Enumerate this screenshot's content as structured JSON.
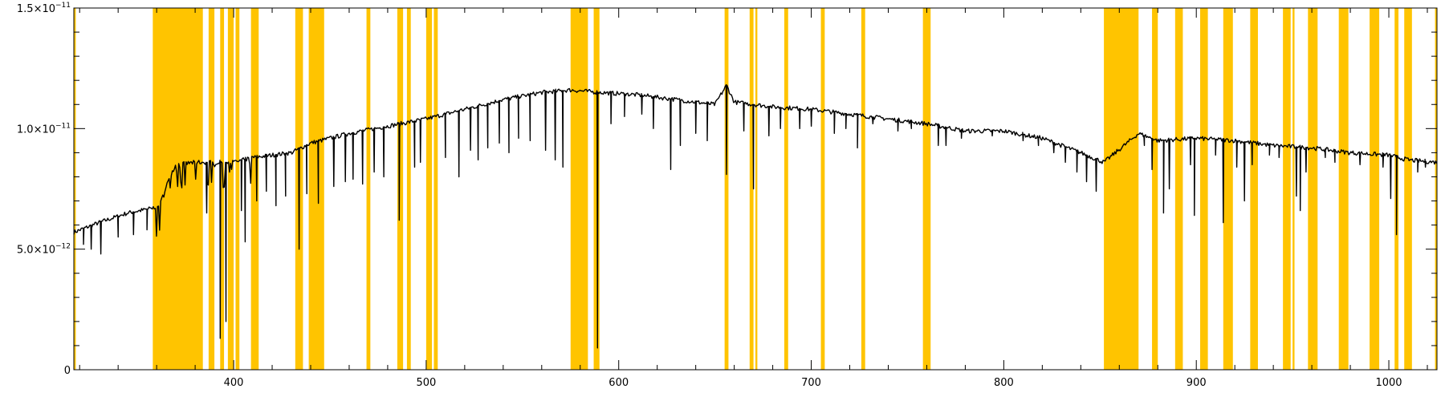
{
  "chart_data": {
    "type": "line",
    "title": "",
    "xlabel": "",
    "ylabel": "",
    "xlim": [
      317,
      1025
    ],
    "ylim": [
      0,
      1.5e-11
    ],
    "x_ticks": [
      {
        "value": 400,
        "label": "400"
      },
      {
        "value": 500,
        "label": "500"
      },
      {
        "value": 600,
        "label": "600"
      },
      {
        "value": 700,
        "label": "700"
      },
      {
        "value": 800,
        "label": "800"
      },
      {
        "value": 900,
        "label": "900"
      },
      {
        "value": 1000,
        "label": "1000"
      }
    ],
    "y_ticks": [
      {
        "value": 0,
        "mantissa": "0",
        "exponent": ""
      },
      {
        "value": 5e-12,
        "mantissa": "5.0×10",
        "exponent": "−12"
      },
      {
        "value": 1e-11,
        "mantissa": "1.0×10",
        "exponent": "−11"
      },
      {
        "value": 1.5e-11,
        "mantissa": "1.5×10",
        "exponent": "−11"
      }
    ],
    "highlight_color": "#FFC400",
    "line_color": "#000000",
    "masked_bands": [
      [
        317,
        318
      ],
      [
        358,
        384
      ],
      [
        387,
        390
      ],
      [
        393,
        395
      ],
      [
        397,
        400
      ],
      [
        401,
        403
      ],
      [
        409,
        413
      ],
      [
        432,
        436
      ],
      [
        439,
        447
      ],
      [
        469,
        471
      ],
      [
        485,
        488
      ],
      [
        490,
        492
      ],
      [
        500,
        503
      ],
      [
        504,
        506
      ],
      [
        575,
        584
      ],
      [
        587,
        590
      ],
      [
        655,
        657
      ],
      [
        668,
        670
      ],
      [
        671,
        672
      ],
      [
        686,
        688
      ],
      [
        705,
        707
      ],
      [
        726,
        728
      ],
      [
        758,
        762
      ],
      [
        852,
        870
      ],
      [
        877,
        880
      ],
      [
        889,
        893
      ],
      [
        902,
        906
      ],
      [
        914,
        919
      ],
      [
        928,
        932
      ],
      [
        945,
        949
      ],
      [
        950,
        951
      ],
      [
        958,
        963
      ],
      [
        974,
        979
      ],
      [
        990,
        995
      ],
      [
        1003,
        1005
      ],
      [
        1008,
        1012
      ],
      [
        1024,
        1025
      ]
    ],
    "continuum": {
      "x": [
        317,
        330,
        345,
        358,
        362,
        366,
        370,
        380,
        390,
        400,
        410,
        420,
        430,
        440,
        450,
        460,
        480,
        500,
        520,
        540,
        560,
        575,
        590,
        610,
        630,
        650,
        656,
        660,
        680,
        700,
        720,
        740,
        760,
        780,
        800,
        820,
        840,
        852,
        870,
        880,
        900,
        920,
        940,
        960,
        980,
        1000,
        1010,
        1025
      ],
      "y": [
        5.7e-12,
        6.1e-12,
        6.5e-12,
        6.7e-12,
        6.9e-12,
        7.9e-12,
        8.5e-12,
        8.6e-12,
        8.6e-12,
        8.6e-12,
        8.8e-12,
        8.9e-12,
        9e-12,
        9.4e-12,
        9.6e-12,
        9.8e-12,
        1.01e-11,
        1.04e-11,
        1.08e-11,
        1.12e-11,
        1.15e-11,
        1.16e-11,
        1.15e-11,
        1.14e-11,
        1.12e-11,
        1.1e-11,
        1.18e-11,
        1.11e-11,
        1.09e-11,
        1.08e-11,
        1.06e-11,
        1.04e-11,
        1.02e-11,
        9.9e-12,
        9.9e-12,
        9.6e-12,
        9e-12,
        8.6e-12,
        9.8e-12,
        9.5e-12,
        9.6e-12,
        9.5e-12,
        9.3e-12,
        9.2e-12,
        9e-12,
        8.9e-12,
        8.7e-12,
        8.6e-12
      ]
    },
    "absorption_lines": [
      [
        322,
        5.2e-12
      ],
      [
        326,
        5e-12
      ],
      [
        331,
        4.8e-12
      ],
      [
        340,
        5.5e-12
      ],
      [
        348,
        5.6e-12
      ],
      [
        355,
        5.8e-12
      ],
      [
        386,
        6.5e-12
      ],
      [
        393,
        1.3e-12
      ],
      [
        396,
        2e-12
      ],
      [
        404,
        6.6e-12
      ],
      [
        406,
        5.3e-12
      ],
      [
        412,
        7e-12
      ],
      [
        417,
        7.4e-12
      ],
      [
        422,
        6.8e-12
      ],
      [
        427,
        7.2e-12
      ],
      [
        434,
        5e-12
      ],
      [
        438,
        7.3e-12
      ],
      [
        444,
        6.9e-12
      ],
      [
        452,
        7.6e-12
      ],
      [
        458,
        7.8e-12
      ],
      [
        462,
        7.9e-12
      ],
      [
        467,
        7.7e-12
      ],
      [
        473,
        8.2e-12
      ],
      [
        478,
        8e-12
      ],
      [
        486,
        6.2e-12
      ],
      [
        494,
        8.4e-12
      ],
      [
        497,
        8.6e-12
      ],
      [
        510,
        8.8e-12
      ],
      [
        517,
        8e-12
      ],
      [
        523,
        9.1e-12
      ],
      [
        527,
        8.7e-12
      ],
      [
        532,
        9.2e-12
      ],
      [
        538,
        9.4e-12
      ],
      [
        543,
        9e-12
      ],
      [
        548,
        9.6e-12
      ],
      [
        554,
        9.5e-12
      ],
      [
        562,
        9.1e-12
      ],
      [
        567,
        8.7e-12
      ],
      [
        571,
        8.4e-12
      ],
      [
        589,
        9e-13
      ],
      [
        596,
        1.02e-11
      ],
      [
        603,
        1.05e-11
      ],
      [
        612,
        1.06e-11
      ],
      [
        618,
        1e-11
      ],
      [
        627,
        8.3e-12
      ],
      [
        632,
        9.3e-12
      ],
      [
        640,
        9.8e-12
      ],
      [
        646,
        9.5e-12
      ],
      [
        656,
        8.1e-12
      ],
      [
        665,
        9.9e-12
      ],
      [
        670,
        7.5e-12
      ],
      [
        678,
        9.7e-12
      ],
      [
        684,
        1e-11
      ],
      [
        694,
        1e-11
      ],
      [
        700,
        1.01e-11
      ],
      [
        712,
        9.8e-12
      ],
      [
        718,
        1e-11
      ],
      [
        724,
        9.2e-12
      ],
      [
        732,
        1.02e-11
      ],
      [
        745,
        9.9e-12
      ],
      [
        752,
        1e-11
      ],
      [
        766,
        9.3e-12
      ],
      [
        770,
        9.3e-12
      ],
      [
        778,
        9.6e-12
      ],
      [
        794,
        9.7e-12
      ],
      [
        810,
        9.5e-12
      ],
      [
        818,
        9.3e-12
      ],
      [
        826,
        9e-12
      ],
      [
        832,
        8.6e-12
      ],
      [
        838,
        8.2e-12
      ],
      [
        843,
        7.8e-12
      ],
      [
        848,
        7.4e-12
      ],
      [
        873,
        9.3e-12
      ],
      [
        877,
        8.3e-12
      ],
      [
        883,
        6.5e-12
      ],
      [
        886,
        7.5e-12
      ],
      [
        897,
        8.5e-12
      ],
      [
        899,
        6.4e-12
      ],
      [
        910,
        8.9e-12
      ],
      [
        914,
        6.1e-12
      ],
      [
        921,
        8.4e-12
      ],
      [
        925,
        7e-12
      ],
      [
        929,
        8.5e-12
      ],
      [
        938,
        8.9e-12
      ],
      [
        943,
        8.8e-12
      ],
      [
        952,
        7.2e-12
      ],
      [
        954,
        6.6e-12
      ],
      [
        957,
        8.2e-12
      ],
      [
        967,
        8.8e-12
      ],
      [
        972,
        8.6e-12
      ],
      [
        985,
        8.5e-12
      ],
      [
        997,
        8.4e-12
      ],
      [
        1001,
        7.1e-12
      ],
      [
        1004,
        5.6e-12
      ],
      [
        1015,
        8.2e-12
      ],
      [
        1019,
        8.4e-12
      ]
    ]
  }
}
